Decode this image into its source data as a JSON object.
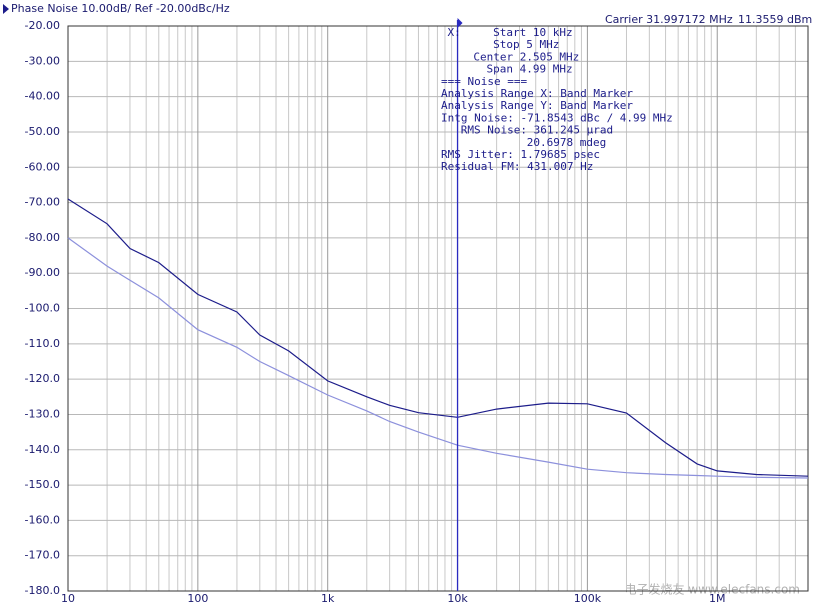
{
  "chart_data": {
    "type": "line",
    "title": "Phase Noise 10.00dB/ Ref -20.00dBc/Hz",
    "carrier": "Carrier 31.997172 MHz",
    "carrier_power": "11.3559 dBm",
    "x_scale": "log",
    "grid": true,
    "xlim": [
      10,
      5000000
    ],
    "ylim": [
      -180,
      -20
    ],
    "xticks": [
      10,
      100,
      {
        "value": 1000,
        "label": "1k"
      },
      {
        "value": 10000,
        "label": "10k"
      },
      {
        "value": 100000,
        "label": "100k"
      },
      {
        "value": 1000000,
        "label": "1M"
      }
    ],
    "xminorticks": [
      20,
      30,
      40,
      50,
      60,
      70,
      80,
      90,
      200,
      300,
      400,
      500,
      600,
      700,
      800,
      900,
      2000,
      3000,
      4000,
      5000,
      6000,
      7000,
      8000,
      9000,
      20000,
      30000,
      40000,
      50000,
      60000,
      70000,
      80000,
      90000,
      200000,
      300000,
      400000,
      500000,
      600000,
      700000,
      800000,
      900000,
      2000000,
      3000000,
      4000000
    ],
    "yticks": [
      {
        "value": -20,
        "label": "-20.00"
      },
      {
        "value": -30,
        "label": "-30.00"
      },
      {
        "value": -40,
        "label": "-40.00"
      },
      {
        "value": -50,
        "label": "-50.00"
      },
      {
        "value": -60,
        "label": "-60.00"
      },
      {
        "value": -70,
        "label": "-70.00"
      },
      {
        "value": -80,
        "label": "-80.00"
      },
      {
        "value": -90,
        "label": "-90.00"
      },
      {
        "value": -100,
        "label": "-100.0"
      },
      {
        "value": -110,
        "label": "-110.0"
      },
      {
        "value": -120,
        "label": "-120.0"
      },
      {
        "value": -130,
        "label": "-130.0"
      },
      {
        "value": -140,
        "label": "-140.0"
      },
      {
        "value": -150,
        "label": "-150.0"
      },
      {
        "value": -160,
        "label": "-160.0"
      },
      {
        "value": -170,
        "label": "-170.0"
      },
      {
        "value": -180,
        "label": "-180.0"
      }
    ],
    "x": [
      10,
      20,
      30,
      50,
      100,
      200,
      300,
      500,
      1000,
      2000,
      3000,
      5000,
      10000,
      20000,
      50000,
      100000,
      200000,
      400000,
      700000,
      1000000,
      2000000,
      5000000
    ],
    "series": [
      {
        "color": "#1c1c8a",
        "values": [
          -69,
          -76,
          -83,
          -87,
          -96,
          -101,
          -107.5,
          -112,
          -120.5,
          -125,
          -127.4,
          -129.5,
          -130.8,
          -128.5,
          -126.8,
          -127,
          -129.6,
          -138,
          -144,
          -146,
          -147,
          -147.5
        ]
      },
      {
        "color": "#8c90dc",
        "values": [
          -80,
          -88,
          -92,
          -97,
          -106,
          -111,
          -115,
          -119,
          -124.5,
          -129,
          -132,
          -135,
          -138.7,
          -141,
          -143.5,
          -145.5,
          -146.5,
          -147,
          -147.3,
          -147.5,
          -147.8,
          -148
        ]
      }
    ],
    "marker": {
      "x": 10000,
      "color": "#2a2ac0",
      "label": "X:",
      "lines": [
        "Start 10 kHz",
        "Stop 5 MHz",
        "Center 2.505 MHz",
        "Span 4.99 MHz",
        "=== Noise ===",
        "Analysis Range X: Band Marker",
        "Analysis Range Y: Band Marker",
        "Intg Noise: -71.8543 dBc / 4.99 MHz",
        "RMS Noise: 361.245 µrad",
        "20.6978 mdeg",
        "RMS Jitter: 1.79685 psec",
        "Residual FM: 431.007 Hz"
      ]
    },
    "watermark": "电子发烧友 www.elecfans.com"
  }
}
